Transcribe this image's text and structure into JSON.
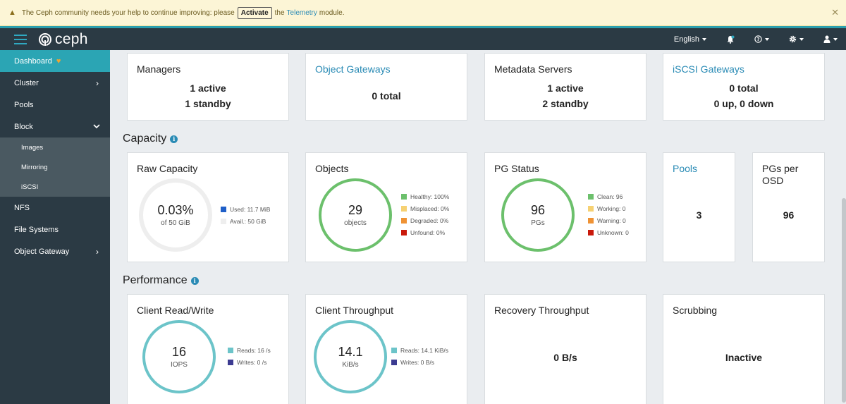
{
  "alert": {
    "text_before": "The Ceph community needs your help to continue improving: please",
    "activate_label": "Activate",
    "text_the": "the",
    "telemetry_link": "Telemetry",
    "text_after": "module."
  },
  "navbar": {
    "logo_text": "ceph",
    "language": "English"
  },
  "sidebar": {
    "items": [
      {
        "label": "Dashboard"
      },
      {
        "label": "Cluster"
      },
      {
        "label": "Pools"
      },
      {
        "label": "Block"
      },
      {
        "label": "Images"
      },
      {
        "label": "Mirroring"
      },
      {
        "label": "iSCSI"
      },
      {
        "label": "NFS"
      },
      {
        "label": "File Systems"
      },
      {
        "label": "Object Gateway"
      }
    ]
  },
  "status": {
    "managers": {
      "title": "Managers",
      "line1": "1 active",
      "line2": "1 standby"
    },
    "object_gateways": {
      "title": "Object Gateways",
      "line1": "0 total"
    },
    "metadata_servers": {
      "title": "Metadata Servers",
      "line1": "1 active",
      "line2": "2 standby"
    },
    "iscsi_gateways": {
      "title": "iSCSI Gateways",
      "line1": "0 total",
      "line2": "0 up, 0 down"
    }
  },
  "capacity": {
    "section_title": "Capacity",
    "raw": {
      "title": "Raw Capacity",
      "value": "0.03%",
      "sub": "of 50 GiB",
      "used_fraction": 0.0003,
      "legend": [
        "Used: 11.7 MiB",
        "Avail.: 50 GiB"
      ]
    },
    "objects": {
      "title": "Objects",
      "value": "29",
      "sub": "objects",
      "legend": [
        "Healthy: 100%",
        "Misplaced: 0%",
        "Degraded: 0%",
        "Unfound: 0%"
      ]
    },
    "pg_status": {
      "title": "PG Status",
      "value": "96",
      "sub": "PGs",
      "legend": [
        "Clean: 96",
        "Working: 0",
        "Warning: 0",
        "Unknown: 0"
      ]
    },
    "pools": {
      "title": "Pools",
      "value": "3"
    },
    "pgs_per_osd": {
      "title": "PGs per OSD",
      "value": "96"
    }
  },
  "performance": {
    "section_title": "Performance",
    "client_rw": {
      "title": "Client Read/Write",
      "value": "16",
      "sub": "IOPS",
      "legend": [
        "Reads: 16 /s",
        "Writes: 0 /s"
      ]
    },
    "client_throughput": {
      "title": "Client Throughput",
      "value": "14.1",
      "sub": "KiB/s",
      "legend": [
        "Reads: 14.1 KiB/s",
        "Writes: 0 B/s"
      ]
    },
    "recovery": {
      "title": "Recovery Throughput",
      "value": "0 B/s"
    },
    "scrubbing": {
      "title": "Scrubbing",
      "value": "Inactive"
    }
  },
  "colors": {
    "accent": "#2ba5b4",
    "green": "#6cc06c",
    "teal": "#6cc4c9",
    "yellow": "#f6d173",
    "orange": "#ef9234",
    "red": "#c9190b",
    "blue": "#1f5fc8",
    "navy": "#3c3b91",
    "grey": "#eeeeee"
  }
}
